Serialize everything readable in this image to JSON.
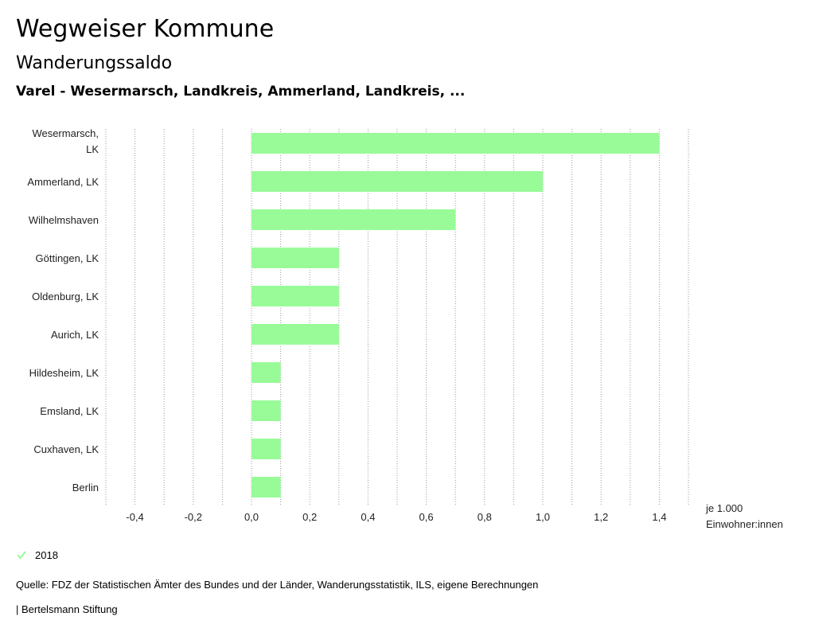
{
  "header": {
    "title": "Wegweiser Kommune",
    "subtitle": "Wanderungssaldo",
    "region": "Varel - Wesermarsch, Landkreis, Ammerland, Landkreis, ..."
  },
  "colors": {
    "bar": "#98fb98",
    "grid": "#999999"
  },
  "legend": {
    "year_label": "2018",
    "icon": "check-icon"
  },
  "footer": {
    "source": "Quelle: FDZ der Statistischen Ämter des Bundes und der Länder, Wanderungsstatistik, ILS, eigene Berechnungen",
    "brand": "| Bertelsmann Stiftung"
  },
  "chart_data": {
    "type": "bar",
    "orientation": "horizontal",
    "categories": [
      "Wesermarsch, LK",
      "Ammerland, LK",
      "Wilhelmshaven",
      "Göttingen, LK",
      "Oldenburg, LK",
      "Aurich, LK",
      "Hildesheim, LK",
      "Emsland, LK",
      "Cuxhaven, LK",
      "Berlin"
    ],
    "series": [
      {
        "name": "2018",
        "values": [
          1.4,
          1.0,
          0.7,
          0.3,
          0.3,
          0.3,
          0.1,
          0.1,
          0.1,
          0.1
        ]
      }
    ],
    "xlim": [
      -0.5,
      1.5
    ],
    "xticks": [
      "-0,4",
      "-0,2",
      "0,0",
      "0,2",
      "0,4",
      "0,6",
      "0,8",
      "1,0",
      "1,2",
      "1,4"
    ],
    "xtick_values": [
      -0.4,
      -0.2,
      0.0,
      0.2,
      0.4,
      0.6,
      0.8,
      1.0,
      1.2,
      1.4
    ],
    "unit_label_1": "je 1.000",
    "unit_label_2": "Einwohner:innen",
    "grid": true
  }
}
